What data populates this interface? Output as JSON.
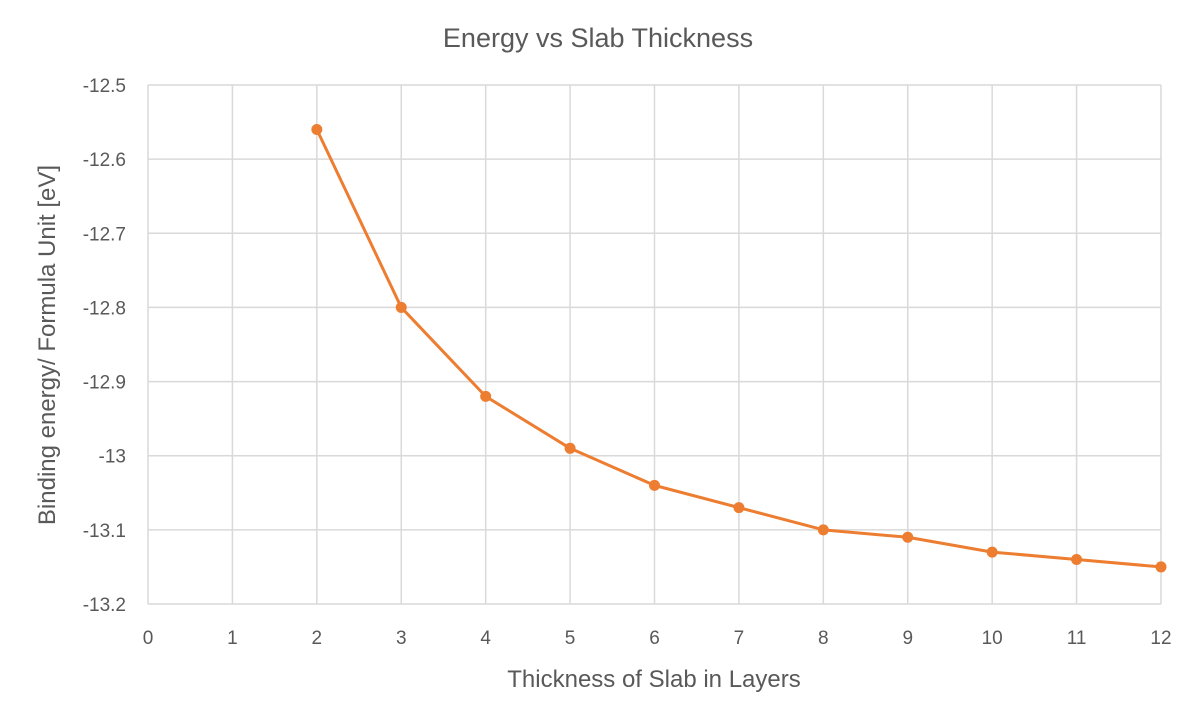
{
  "chart_data": {
    "type": "scatter",
    "title": "Energy vs Slab Thickness",
    "xlabel": "Thickness of Slab in Layers",
    "ylabel": "Binding energy/ Formula Unit [eV]",
    "xlim": [
      0,
      12
    ],
    "ylim": [
      -13.2,
      -12.5
    ],
    "x_ticks": [
      0,
      1,
      2,
      3,
      4,
      5,
      6,
      7,
      8,
      9,
      10,
      11,
      12
    ],
    "y_ticks": [
      -12.5,
      -12.6,
      -12.7,
      -12.8,
      -12.9,
      -13,
      -13.1,
      -13.2
    ],
    "y_tick_labels": [
      "-12.5",
      "-12.6",
      "-12.7",
      "-12.8",
      "-12.9",
      "-13",
      "-13.1",
      "-13.2"
    ],
    "grid": true,
    "legend": "none",
    "series": [
      {
        "color": "#ed7d31",
        "points": [
          {
            "x": 2,
            "y": -12.56
          },
          {
            "x": 3,
            "y": -12.8
          },
          {
            "x": 4,
            "y": -12.92
          },
          {
            "x": 5,
            "y": -12.99
          },
          {
            "x": 6,
            "y": -13.04
          },
          {
            "x": 7,
            "y": -13.07
          },
          {
            "x": 8,
            "y": -13.1
          },
          {
            "x": 9,
            "y": -13.11
          },
          {
            "x": 10,
            "y": -13.13
          },
          {
            "x": 11,
            "y": -13.14
          },
          {
            "x": 12,
            "y": -13.15
          }
        ]
      }
    ]
  }
}
